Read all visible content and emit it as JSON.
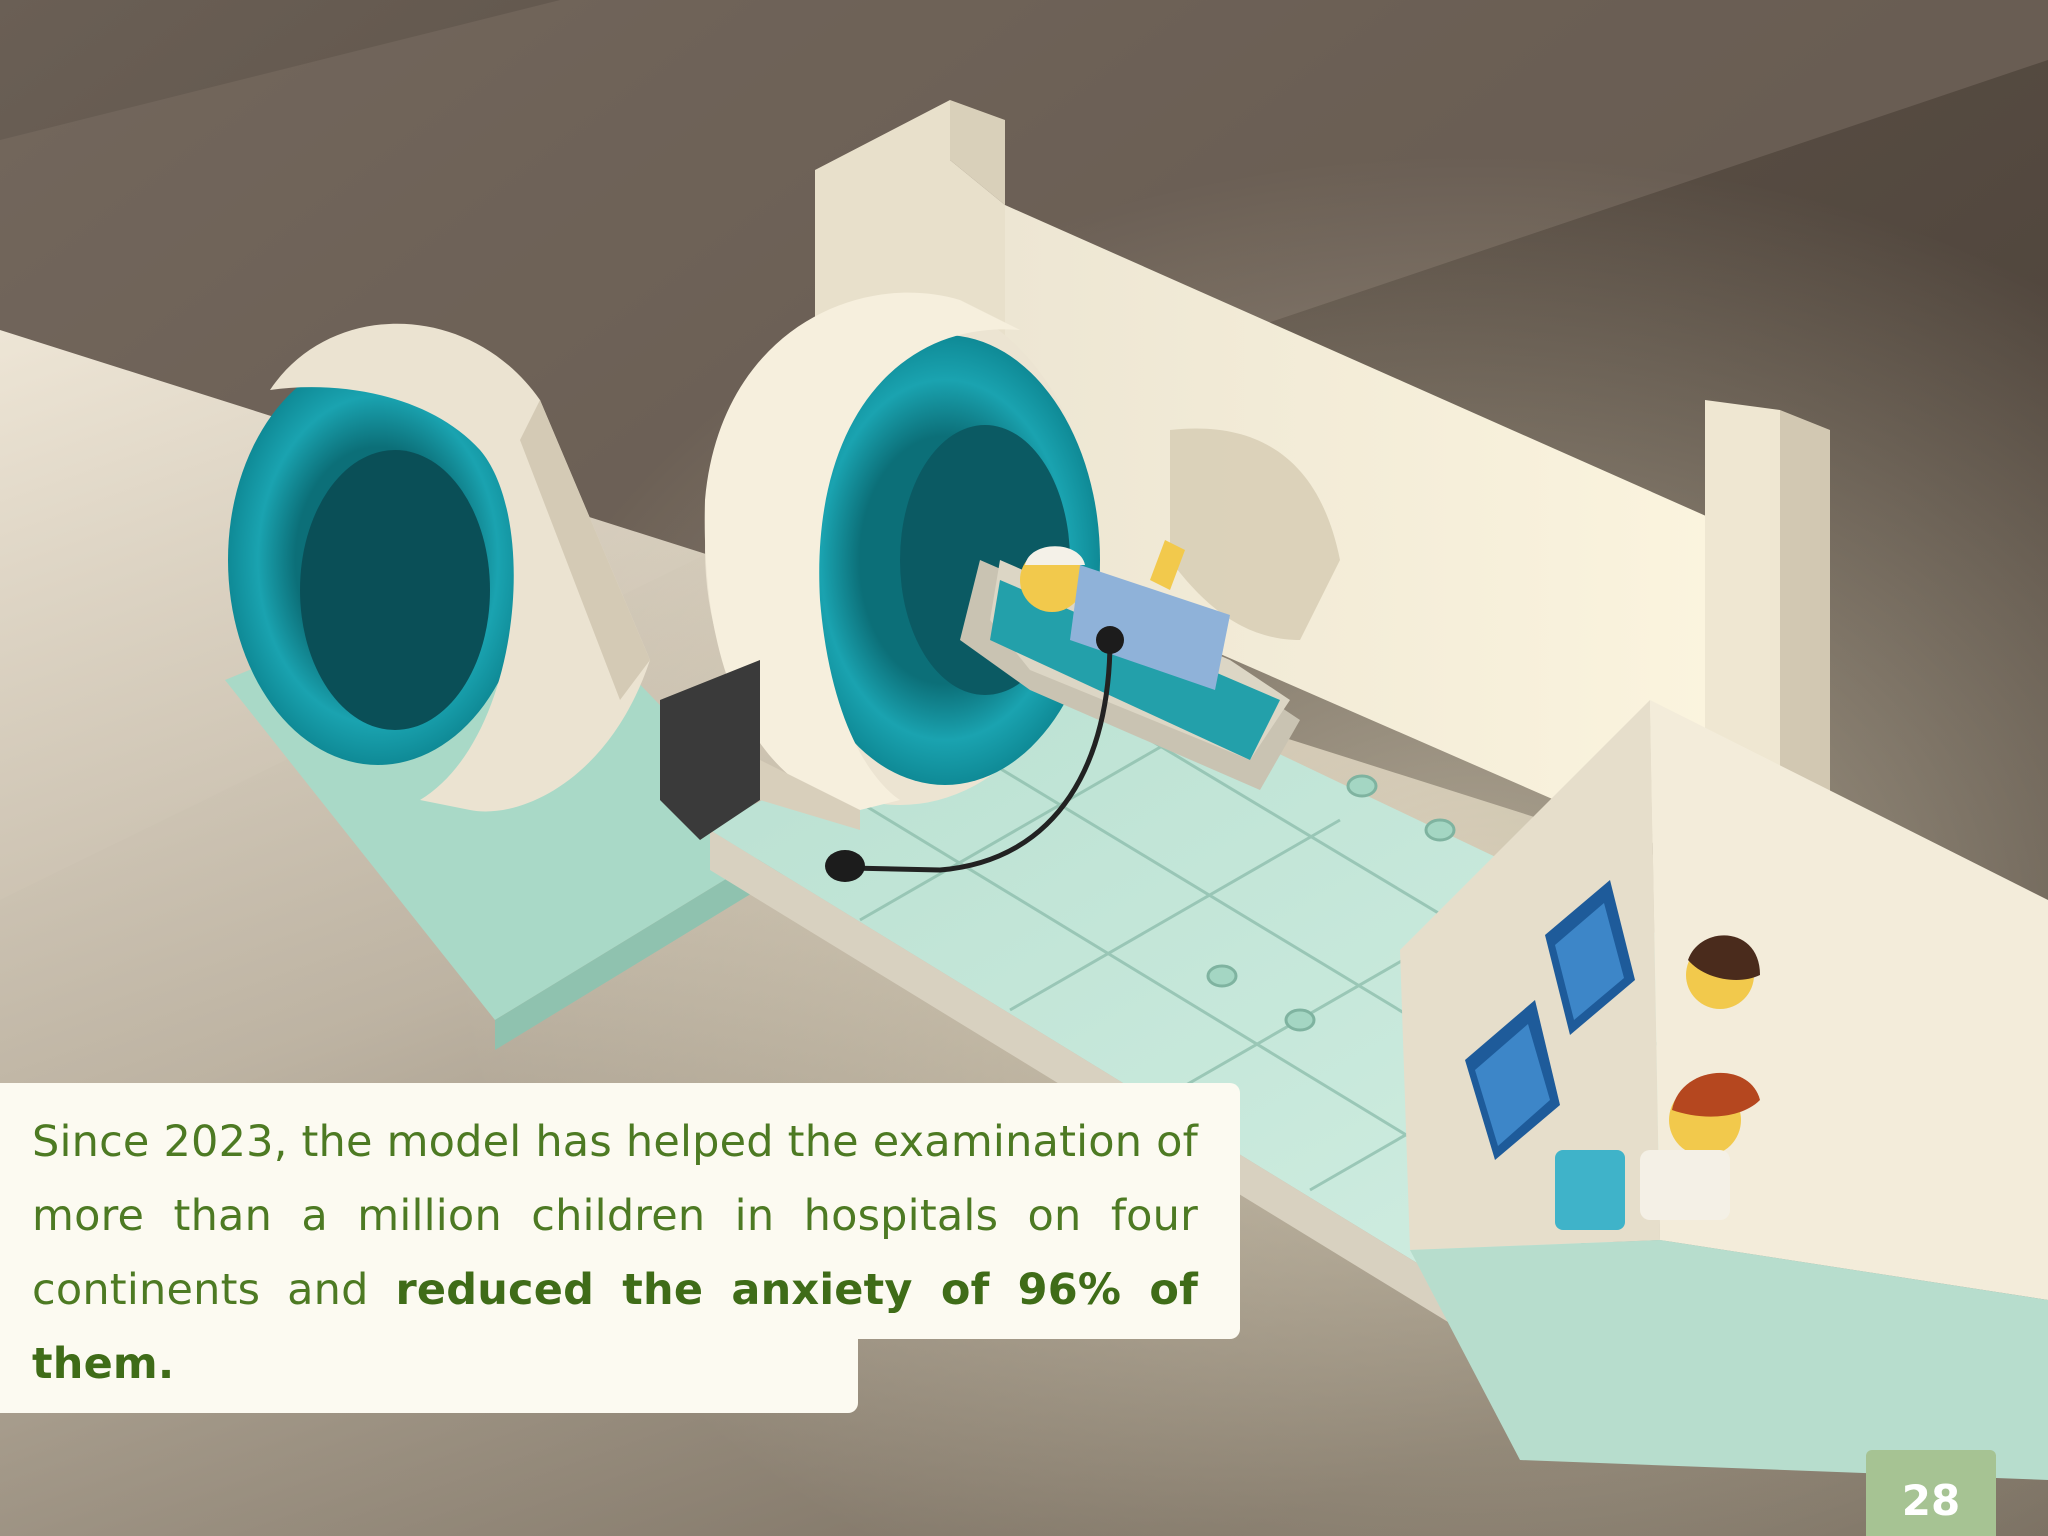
{
  "caption": {
    "text_before": "Since 2023, the model has helped the examination of more than a million children in hospitals on four continents and ",
    "text_bold": "reduced the anxiety of 96% of them."
  },
  "page_number": "28",
  "colors": {
    "caption_text": "#4d7a23",
    "caption_background": "#fcfaf1",
    "badge_background": "#a6c393",
    "badge_text": "#ffffff"
  },
  "photo": {
    "subject": "lego-mri-scanner-model-photo"
  }
}
